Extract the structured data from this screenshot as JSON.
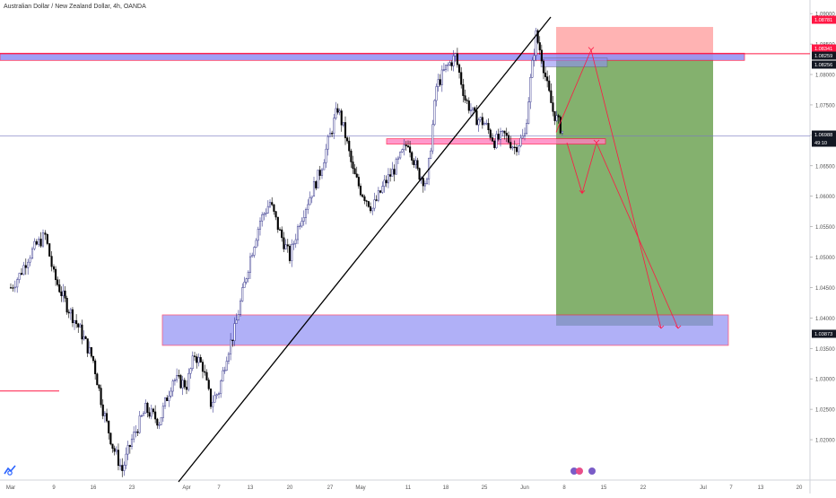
{
  "header": {
    "title": "Australian Dollar / New Zealand Dollar, 4h, OANDA"
  },
  "colors": {
    "candle_up": "#3b3b8f",
    "candle_down": "#000000",
    "accent_red": "#ff1744",
    "zone_fill": "#8f8ff5",
    "profit_fill": "#4a8c2a",
    "loss_fill": "#ff9a9a",
    "badge_dark": "#131722"
  },
  "chart_data": {
    "type": "candlestick",
    "x_tick_labels": [
      "Mar",
      "9",
      "16",
      "23",
      "Apr",
      "7",
      "13",
      "20",
      "27",
      "May",
      "11",
      "18",
      "25",
      "Jun",
      "8",
      "15",
      "22",
      "Jul",
      "7",
      "13",
      "20"
    ],
    "y_tick_labels": [
      "1.09000",
      "1.08500",
      "1.08000",
      "1.07500",
      "1.07000",
      "1.06500",
      "1.06000",
      "1.05500",
      "1.05000",
      "1.04500",
      "1.04000",
      "1.03500",
      "1.03000",
      "1.02500",
      "1.02000"
    ],
    "ylim": [
      1.0175,
      1.0915
    ],
    "close_path": [
      [
        "Mar",
        1.045
      ],
      [
        "Mar",
        1.047
      ],
      [
        "Mar",
        1.05
      ],
      [
        "Mar",
        1.052
      ],
      [
        "Mar",
        1.0535
      ],
      [
        "9",
        1.047
      ],
      [
        "9",
        1.042
      ],
      [
        "9",
        1.038
      ],
      [
        "16",
        1.033
      ],
      [
        "16",
        1.025
      ],
      [
        "16",
        1.019
      ],
      [
        "16",
        1.015
      ],
      [
        "23",
        1.02
      ],
      [
        "23",
        1.025
      ],
      [
        "23",
        1.023
      ],
      [
        "23",
        1.03
      ],
      [
        "Apr",
        1.029
      ],
      [
        "Apr",
        1.034
      ],
      [
        "Apr",
        1.032
      ],
      [
        "Apr",
        1.026
      ],
      [
        "7",
        1.028
      ],
      [
        "7",
        1.034
      ],
      [
        "7",
        1.038
      ],
      [
        "7",
        1.044
      ],
      [
        "13",
        1.05
      ],
      [
        "13",
        1.056
      ],
      [
        "13",
        1.059
      ],
      [
        "13",
        1.054
      ],
      [
        "20",
        1.05
      ],
      [
        "20",
        1.056
      ],
      [
        "20",
        1.06
      ],
      [
        "20",
        1.064
      ],
      [
        "27",
        1.07
      ],
      [
        "27",
        1.0745
      ],
      [
        "27",
        1.07
      ],
      [
        "27",
        1.064
      ],
      [
        "May",
        1.061
      ],
      [
        "May",
        1.058
      ],
      [
        "May",
        1.062
      ],
      [
        "May",
        1.065
      ],
      [
        "11",
        1.069
      ],
      [
        "11",
        1.064
      ],
      [
        "11",
        1.062
      ],
      [
        "11",
        1.078
      ],
      [
        "18",
        1.081
      ],
      [
        "18",
        1.083
      ],
      [
        "18",
        1.076
      ],
      [
        "18",
        1.073
      ],
      [
        "25",
        1.072
      ],
      [
        "25",
        1.069
      ],
      [
        "25",
        1.07
      ],
      [
        "25",
        1.068
      ],
      [
        "Jun",
        1.07
      ],
      [
        "Jun",
        1.079
      ],
      [
        "Jun",
        1.0865
      ],
      [
        "Jun",
        1.083
      ],
      [
        "Jun",
        1.078
      ],
      [
        "Jun",
        1.074
      ],
      [
        "Jun",
        1.072
      ],
      [
        "8",
        1.07
      ]
    ],
    "support_zone": [
      1.0355,
      1.0405
    ],
    "resistance_zone": [
      1.0826,
      1.0832
    ],
    "mid_zone": [
      1.0688,
      1.0693
    ],
    "position": {
      "entry": 1.08256,
      "stop": 1.08781,
      "target": 1.03873
    },
    "projection": [
      1.0688,
      1.0605,
      1.0688,
      1.0383
    ],
    "left_marker_level": 1.028,
    "price_labels": [
      {
        "text": "1.08781",
        "role": "stop"
      },
      {
        "text": "1.08341",
        "role": "red-line"
      },
      {
        "text": "1.08259",
        "role": "zone"
      },
      {
        "text": "1.08256",
        "role": "entry"
      },
      {
        "text": "1.06988",
        "role": "last"
      },
      {
        "text": "49:10",
        "role": "countdown"
      },
      {
        "text": "1.03873",
        "role": "target"
      }
    ],
    "grid": false,
    "legend": "none"
  }
}
